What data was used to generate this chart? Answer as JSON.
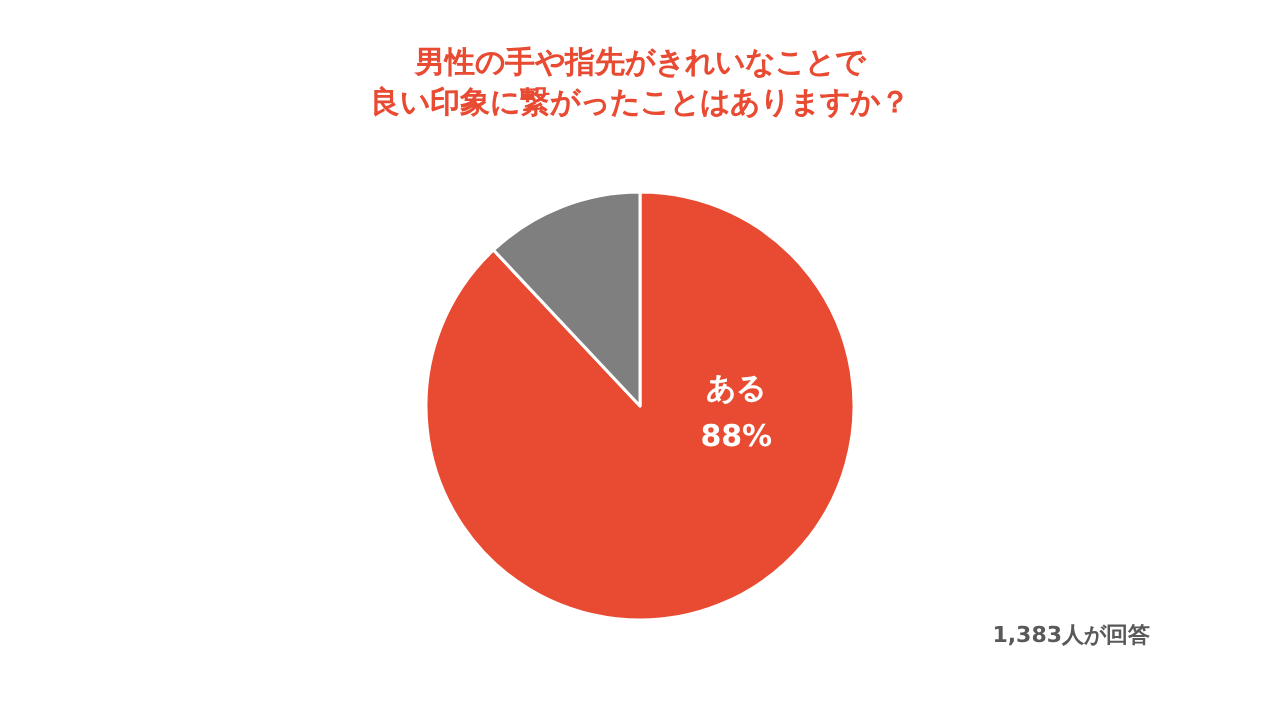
{
  "chart_data": {
    "type": "pie",
    "title": "男性の手や指先がきれいなことで",
    "subtitle": "良い印象に繋がったことはありますか？",
    "categories": [
      "ある",
      null
    ],
    "values": [
      88,
      12
    ],
    "colors": [
      "#e84a32",
      "#7f7f7f"
    ],
    "value_labels": [
      "88%",
      null
    ],
    "annotations": [
      "1,383人が回答"
    ]
  }
}
